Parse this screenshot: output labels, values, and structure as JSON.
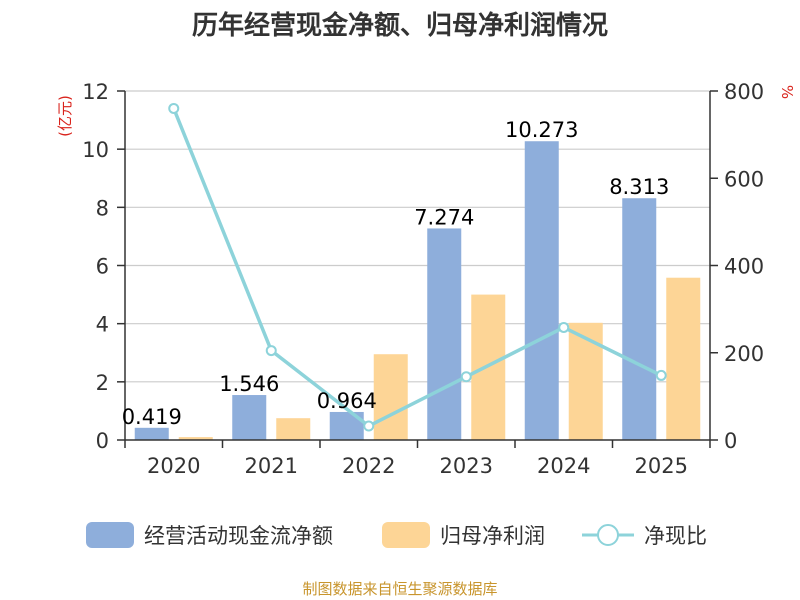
{
  "chart_data": {
    "type": "bar",
    "title": "历年经营现金净额、归母净利润情况",
    "categories": [
      "2020",
      "2021",
      "2022",
      "2023",
      "2024",
      "2025"
    ],
    "series": [
      {
        "name": "经营活动现金流净额",
        "type": "bar",
        "axis": "left",
        "color": "#8eaedb",
        "values": [
          0.419,
          1.546,
          0.964,
          7.274,
          10.273,
          8.313
        ],
        "labels": [
          "0.419",
          "1.546",
          "0.964",
          "7.274",
          "10.273",
          "8.313"
        ]
      },
      {
        "name": "归母净利润",
        "type": "bar",
        "axis": "left",
        "color": "#fdd596",
        "values": [
          0.1,
          0.75,
          2.95,
          5.0,
          4.03,
          5.58
        ]
      },
      {
        "name": "净现比",
        "type": "line",
        "axis": "right",
        "color": "#8dd3da",
        "values": [
          760,
          205,
          32,
          145,
          258,
          148
        ]
      }
    ],
    "left_axis": {
      "label": "(亿元)",
      "ylim": [
        0,
        12
      ],
      "ticks": [
        0,
        2,
        4,
        6,
        8,
        10,
        12
      ],
      "label_color": "#d9231c"
    },
    "right_axis": {
      "label": "%",
      "ylim": [
        0,
        800
      ],
      "ticks": [
        0,
        200,
        400,
        600,
        800
      ],
      "label_color": "#d9231c"
    },
    "grid": true,
    "legend": "bottom",
    "source": "制图数据来自恒生聚源数据库",
    "source_color": "#c8952d"
  }
}
